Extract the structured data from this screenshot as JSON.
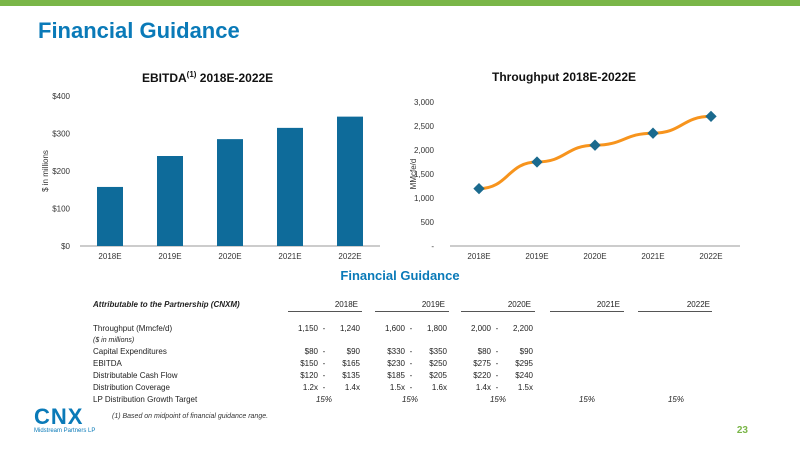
{
  "slide": {
    "title": "Financial Guidance",
    "page_number": "23"
  },
  "colors": {
    "accent_blue": "#0a7ab8",
    "bar_blue": "#0e6b9a",
    "line_orange": "#f7941d",
    "marker_blue": "#1a6a8e",
    "green": "#7ab648"
  },
  "chart_data": [
    {
      "type": "bar",
      "title": "EBITDA",
      "title_superscript": "(1)",
      "title_suffix": " 2018E-2022E",
      "ylabel": "$ in millions",
      "categories": [
        "2018E",
        "2019E",
        "2020E",
        "2021E",
        "2022E"
      ],
      "values": [
        157.5,
        240,
        285,
        315,
        345
      ],
      "ylim": [
        0,
        400
      ],
      "yticks": [
        0,
        100,
        200,
        300,
        400
      ],
      "ytick_labels": [
        "$0",
        "$100",
        "$200",
        "$300",
        "$400"
      ],
      "grid": false
    },
    {
      "type": "line",
      "title": "Throughput 2018E-2022E",
      "ylabel": "MMcfe/d",
      "categories": [
        "2018E",
        "2019E",
        "2020E",
        "2021E",
        "2022E"
      ],
      "values": [
        1195,
        1750,
        2100,
        2350,
        2700
      ],
      "ylim": [
        0,
        3000
      ],
      "yticks": [
        0,
        500,
        1000,
        1500,
        2000,
        2500,
        3000
      ],
      "ytick_labels": [
        "-",
        "500",
        "1,000",
        "1,500",
        "2,000",
        "2,500",
        "3,000"
      ],
      "grid": false
    }
  ],
  "table": {
    "title": "Financial Guidance",
    "header_label": "Attributable to the Partnership (CNXM)",
    "years": [
      "2018E",
      "2019E",
      "2020E",
      "2021E",
      "2022E"
    ],
    "rows": [
      {
        "label": "Throughput (Mmcfe/d)",
        "ranges": [
          [
            "1,150",
            "1,240"
          ],
          [
            "1,600",
            "1,800"
          ],
          [
            "2,000",
            "2,200"
          ]
        ]
      },
      {
        "label": "($ in millions)",
        "note": true,
        "ranges": []
      },
      {
        "label": "Capital Expenditures",
        "ranges": [
          [
            "$80",
            "$90"
          ],
          [
            "$330",
            "$350"
          ],
          [
            "$80",
            "$90"
          ]
        ]
      },
      {
        "label": "EBITDA",
        "ranges": [
          [
            "$150",
            "$165"
          ],
          [
            "$230",
            "$250"
          ],
          [
            "$275",
            "$295"
          ]
        ]
      },
      {
        "label": "Distributable Cash Flow",
        "ranges": [
          [
            "$120",
            "$135"
          ],
          [
            "$185",
            "$205"
          ],
          [
            "$220",
            "$240"
          ]
        ]
      },
      {
        "label": "Distribution Coverage",
        "ranges": [
          [
            "1.2x",
            "1.4x"
          ],
          [
            "1.5x",
            "1.6x"
          ],
          [
            "1.4x",
            "1.5x"
          ]
        ]
      },
      {
        "label": "LP Distribution Growth Target",
        "growth": [
          "15%",
          "15%",
          "15%",
          "15%",
          "15%"
        ]
      }
    ],
    "footnote": "(1)   Based on midpoint of financial guidance range."
  },
  "logo": {
    "text": "CNX",
    "subtitle": "Midstream Partners LP"
  }
}
